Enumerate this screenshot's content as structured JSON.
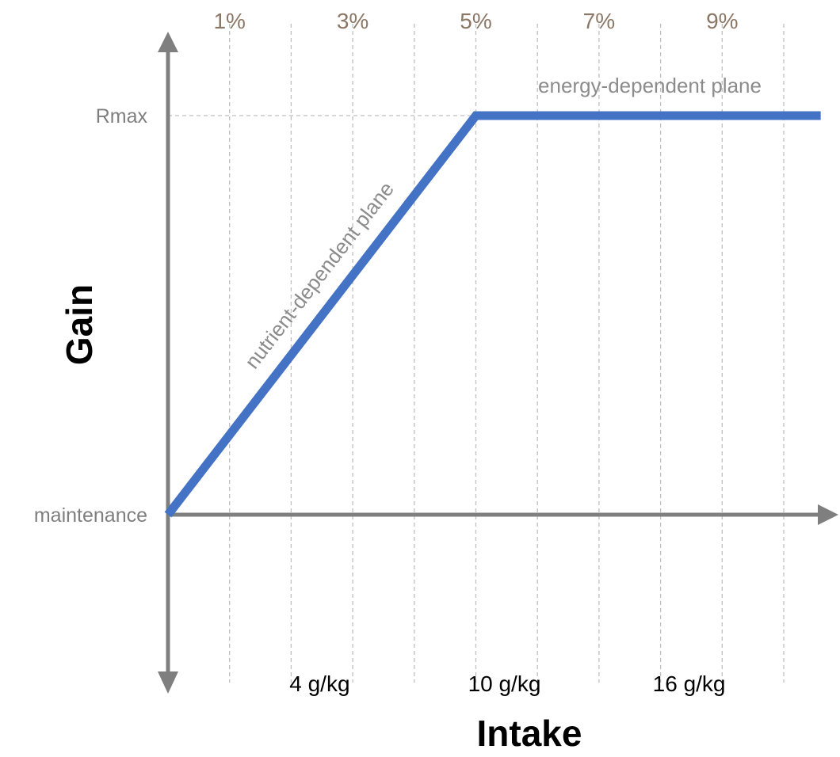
{
  "chart_data": {
    "type": "line",
    "xlabel": "Intake",
    "ylabel": "Gain",
    "top_tick_labels": [
      {
        "pct": 1,
        "label": "1%"
      },
      {
        "pct": 3,
        "label": "3%"
      },
      {
        "pct": 5,
        "label": "5%"
      },
      {
        "pct": 7,
        "label": "7%"
      },
      {
        "pct": 9,
        "label": "9%"
      }
    ],
    "bottom_tick_labels": [
      {
        "value": 4,
        "label": "4 g/kg"
      },
      {
        "value": 10,
        "label": "10 g/kg"
      },
      {
        "value": 16,
        "label": "16 g/kg"
      }
    ],
    "y_levels": [
      {
        "label": "Rmax",
        "gain": 1
      },
      {
        "label": "maintenance",
        "gain": 0
      }
    ],
    "series": [
      {
        "points": [
          {
            "x": 0,
            "y": 0
          },
          {
            "x": 5,
            "y": 1
          },
          {
            "x": 10.6,
            "y": 1
          }
        ]
      }
    ],
    "annotations": {
      "nutrient_plane": "nutrient-dependent plane",
      "energy_plane": "energy-dependent plane"
    },
    "xlim": [
      0,
      10.6
    ],
    "ylim": [
      -0.4,
      1.0
    ],
    "gridlines_pct": [
      1,
      2,
      3,
      4,
      5,
      6,
      7,
      8,
      9,
      10
    ],
    "grid": true,
    "colors": {
      "line": "#4472c4",
      "axis": "#7f7f7f",
      "grid": "#bfbfbf",
      "top_ticks": "#8b7766",
      "level_labels": "#7f7f7f",
      "plane_labels": "#8c8c8c",
      "bottom_ticks": "#000000",
      "axis_titles": "#000000"
    }
  }
}
